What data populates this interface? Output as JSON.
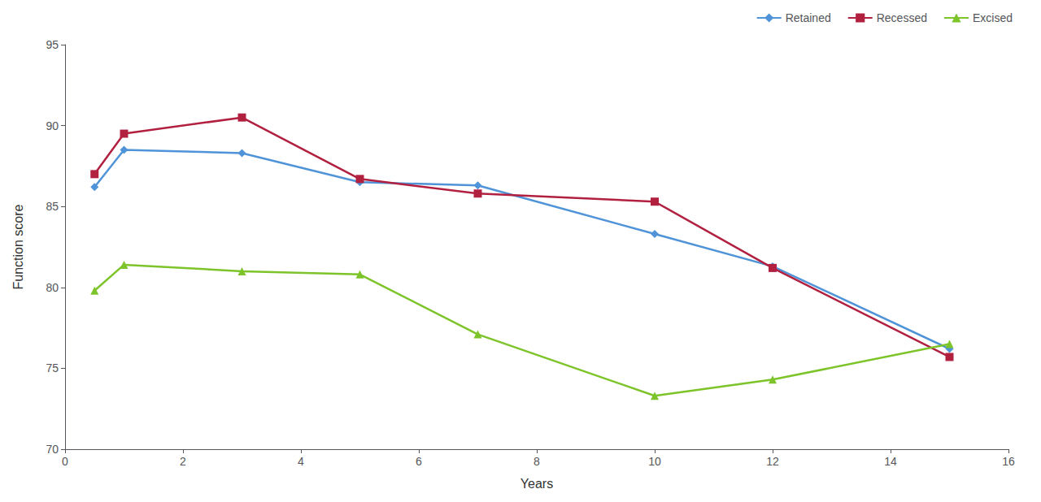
{
  "chart_data": {
    "type": "line",
    "xlabel": "Years",
    "ylabel": "Function score",
    "x": [
      0.5,
      1,
      3,
      5,
      7,
      10,
      12,
      15
    ],
    "series": [
      {
        "name": "Retained",
        "color": "#4F93D8",
        "marker": "diamond",
        "values": [
          86.2,
          88.5,
          88.3,
          86.5,
          86.3,
          83.3,
          81.3,
          76.2
        ]
      },
      {
        "name": "Recessed",
        "color": "#B22040",
        "marker": "square",
        "values": [
          87.0,
          89.5,
          90.5,
          86.7,
          85.8,
          85.3,
          81.2,
          75.7
        ]
      },
      {
        "name": "Excised",
        "color": "#7DC42A",
        "marker": "triangle",
        "values": [
          79.8,
          81.4,
          81.0,
          80.8,
          77.1,
          73.3,
          74.3,
          76.5
        ]
      }
    ],
    "xlim": [
      0,
      16
    ],
    "ylim": [
      70,
      95
    ],
    "xticks": [
      0,
      2,
      4,
      6,
      8,
      10,
      12,
      14,
      16
    ],
    "yticks": [
      70,
      75,
      80,
      85,
      90,
      95
    ],
    "grid": false,
    "legend": "upper right"
  }
}
